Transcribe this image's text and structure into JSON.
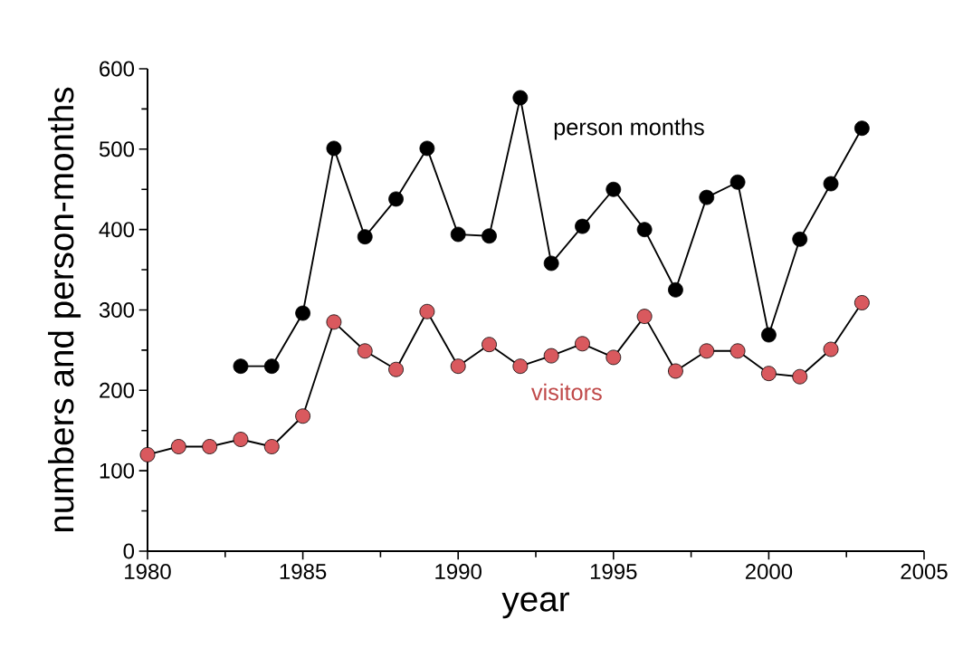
{
  "chart_data": {
    "type": "line",
    "xlabel": "year",
    "ylabel": "numbers and person-months",
    "x": [
      1980,
      1981,
      1982,
      1983,
      1984,
      1985,
      1986,
      1987,
      1988,
      1989,
      1990,
      1991,
      1992,
      1993,
      1994,
      1995,
      1996,
      1997,
      1998,
      1999,
      2000,
      2001,
      2002,
      2003
    ],
    "series": [
      {
        "name": "person months",
        "color": "#000000",
        "values": [
          null,
          null,
          null,
          230,
          230,
          296,
          501,
          391,
          438,
          501,
          394,
          392,
          564,
          358,
          404,
          450,
          400,
          325,
          440,
          459,
          269,
          388,
          457,
          526
        ]
      },
      {
        "name": "visitors",
        "color": "#d9595e",
        "values": [
          120,
          130,
          130,
          139,
          130,
          168,
          285,
          249,
          226,
          298,
          230,
          257,
          230,
          243,
          258,
          241,
          292,
          224,
          249,
          249,
          221,
          217,
          251,
          309
        ]
      }
    ],
    "xlim": [
      1980,
      2005
    ],
    "xticks": [
      1980,
      1985,
      1990,
      1995,
      2000,
      2005
    ],
    "ylim": [
      0,
      600
    ],
    "yticks": [
      0,
      100,
      200,
      300,
      400,
      500,
      600
    ],
    "marker": "circle",
    "line_style": "solid"
  }
}
